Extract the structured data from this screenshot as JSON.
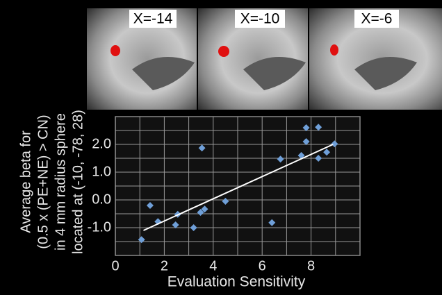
{
  "panels": [
    {
      "label": "X=-14"
    },
    {
      "label": "X=-10"
    },
    {
      "label": "X=-6"
    }
  ],
  "chart_data": {
    "type": "scatter",
    "x_label": "Evaluation Sensitivity",
    "y_label": [
      "Average beta for",
      "(0.5 x (PE+NE) > CN)",
      "in 4 mm radius sphere",
      "located at (-10, -78, 28)"
    ],
    "x": [
      1.07,
      1.42,
      1.74,
      2.46,
      2.55,
      3.2,
      3.48,
      3.65,
      3.54,
      4.5,
      6.4,
      6.75,
      7.6,
      7.8,
      7.8,
      8.3,
      8.3,
      8.64,
      8.96
    ],
    "values": [
      -1.43,
      -0.2,
      -0.78,
      -0.9,
      -0.52,
      -1.0,
      -0.45,
      -0.33,
      1.87,
      -0.05,
      -0.82,
      1.47,
      1.6,
      2.6,
      2.1,
      2.62,
      1.5,
      1.72,
      2.02
    ],
    "color": "#6f9fd8",
    "trendline": {
      "x": [
        1.15,
        8.9
      ],
      "values": [
        -1.1,
        2.0
      ],
      "color": "#ffffff"
    },
    "xlim": [
      0,
      10
    ],
    "xticks": [
      0,
      2,
      4,
      6,
      8
    ],
    "ylim": [
      -2,
      3
    ],
    "yticks": [
      {
        "value": -1,
        "label": "-1.0"
      },
      {
        "value": 0,
        "label": "0.0"
      },
      {
        "value": 1,
        "label": "1.0"
      },
      {
        "value": 2,
        "label": "2.0"
      }
    ],
    "grid": true
  }
}
